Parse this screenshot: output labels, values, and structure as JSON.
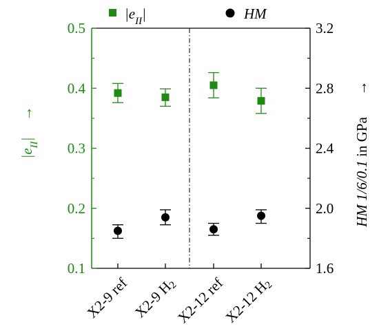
{
  "colors": {
    "left": "#1f8a12",
    "right": "#000000"
  },
  "chart_data": {
    "type": "scatter",
    "categories": [
      "X2-9 ref",
      "X2-9 H2",
      "X2-12 ref",
      "X2-12 H2"
    ],
    "category_labels": [
      {
        "base": "X2-9 ref",
        "sub": ""
      },
      {
        "base": "X2-9 H",
        "sub": "2"
      },
      {
        "base": "X2-12 ref",
        "sub": ""
      },
      {
        "base": "X2-12 H",
        "sub": "2"
      }
    ],
    "legend": [
      {
        "marker": "square",
        "label_pre": "|e",
        "label_sub": "II",
        "label_post": "|"
      },
      {
        "marker": "circle",
        "label_pre": "HM",
        "label_sub": "",
        "label_post": ""
      }
    ],
    "left_axis": {
      "ylim": [
        0.1,
        0.5
      ],
      "ticks": [
        "0.1",
        "0.2",
        "0.3",
        "0.4",
        "0.5"
      ],
      "title_pre": "|e",
      "title_sub": "II",
      "title_post": "|",
      "arrow": "→"
    },
    "right_axis": {
      "ylim": [
        1.6,
        3.2
      ],
      "ticks": [
        "1.6",
        "2.0",
        "2.4",
        "2.8",
        "3.2"
      ],
      "title_italic": "HM 1/6/0.1",
      "title_rest": " in GPa",
      "arrow": "→"
    },
    "series": [
      {
        "axis": "left",
        "marker": "square",
        "values": [
          0.392,
          0.385,
          0.405,
          0.379
        ],
        "err_low": [
          0.016,
          0.015,
          0.021,
          0.021
        ],
        "err_high": [
          0.016,
          0.014,
          0.021,
          0.021
        ]
      },
      {
        "axis": "right",
        "marker": "circle",
        "values": [
          1.85,
          1.94,
          1.86,
          1.95
        ],
        "err_low": [
          0.05,
          0.05,
          0.04,
          0.05
        ],
        "err_high": [
          0.04,
          0.05,
          0.04,
          0.04
        ]
      }
    ],
    "separator": {
      "between": [
        1,
        2
      ],
      "style": "dash-dot"
    },
    "grid": false
  }
}
